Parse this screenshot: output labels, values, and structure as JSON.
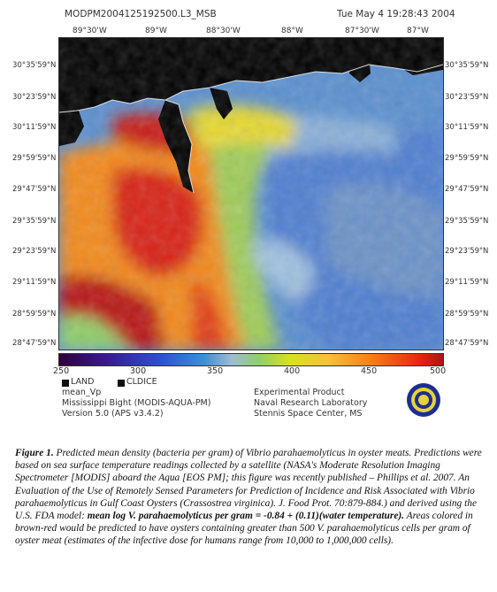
{
  "header": {
    "filename": "MODPM2004125192500.L3_MSB",
    "timestamp": "Tue May  4 19:28:43 2004"
  },
  "longitude_labels": [
    "89°30'W",
    "89°W",
    "88°30'W",
    "88°W",
    "87°30'W",
    "87°W"
  ],
  "latitude_labels": [
    "30°35'59\"N",
    "30°23'59\"N",
    "30°11'59\"N",
    "29°59'59\"N",
    "29°47'59\"N",
    "29°35'59\"N",
    "29°23'59\"N",
    "29°11'59\"N",
    "28°59'59\"N",
    "28°47'59\"N"
  ],
  "colorbar": {
    "ticks": [
      "250",
      "300",
      "350",
      "400",
      "450",
      "500"
    ]
  },
  "legend": {
    "land": "LAND",
    "cldice": "CLDICE"
  },
  "product": {
    "name": "mean_Vp",
    "region": "Mississippi Bight (MODIS-AQUA-PM)",
    "version": "Version 5.0 (APS v3.4.2)"
  },
  "lab": {
    "line1": "Experimental Product",
    "line2": "Naval Research Laboratory",
    "line3": "Stennis Space Center, MS"
  },
  "caption": {
    "label": "Figure 1.",
    "p1": " Predicted mean density (bacteria per gram) of Vibrio parahaemolyticus in oyster meats. Predictions were based on sea surface temperature readings collected by a satellite (NASA's Moderate Resolution Imaging Spectrometer [MODIS] aboard the Aqua [EOS PM]; this figure was recently published – Phillips et al. 2007. An Evaluation of the Use of Remotely Sensed Parameters for Prediction of Incidence and Risk Associated with Vibrio parahaemolyticus in Gulf Coast Oysters (Crassostrea virginica). J. Food Prot. 70:879-884.) and derived using the U.S. FDA model: ",
    "model": "mean log V. parahaemolyticus per gram = -0.84 + (0.11)(water temperature).",
    "p2": " Areas colored in brown-red would be predicted to have oysters containing greater than 500 V. parahaemolyticus cells per gram of oyster meat (estimates of the infective dose for humans range from 10,000 to 1,000,000 cells)."
  },
  "colors": {
    "land": "#000000",
    "high": "#b11212",
    "mid": "#f6c23a",
    "low": "#3e90d6"
  },
  "legend_icons": {
    "land": "black-square-icon",
    "cldice": "black-square-icon",
    "logo": "fda-seal-icon"
  }
}
